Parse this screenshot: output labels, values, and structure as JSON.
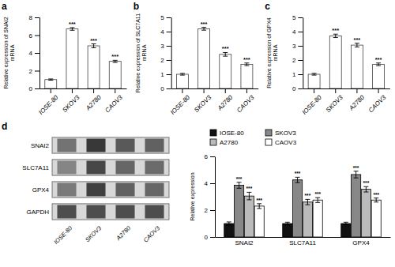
{
  "chart_data": [
    {
      "type": "bar",
      "title": "a",
      "categories": [
        "IOSE-80",
        "SKOV3",
        "A2780",
        "CAOV3"
      ],
      "values": [
        1.0,
        6.7,
        4.8,
        3.05
      ],
      "errors": [
        0.07,
        0.15,
        0.22,
        0.12
      ],
      "annotations": [
        null,
        "***",
        "***",
        "***"
      ],
      "ylabel": "Relative expression of SNAI2\nmRNA",
      "color": "#ffffff",
      "ylim": [
        0,
        8
      ],
      "yticks": [
        0,
        2,
        4,
        6,
        8
      ]
    },
    {
      "type": "bar",
      "title": "b",
      "categories": [
        "IOSE-80",
        "SKOV3",
        "A2780",
        "CAOV3"
      ],
      "values": [
        1.0,
        4.2,
        2.4,
        1.7
      ],
      "errors": [
        0.06,
        0.1,
        0.13,
        0.09
      ],
      "annotations": [
        null,
        "***",
        "***",
        "***"
      ],
      "ylabel": "Relative expression of SLC7A11\nmRNA",
      "color": "#ffffff",
      "ylim": [
        0,
        5
      ],
      "yticks": [
        0,
        1,
        2,
        3,
        4,
        5
      ]
    },
    {
      "type": "bar",
      "title": "c",
      "categories": [
        "IOSE-80",
        "SKOV3",
        "A2780",
        "CAOV3"
      ],
      "values": [
        1.0,
        3.7,
        3.05,
        1.7
      ],
      "errors": [
        0.06,
        0.12,
        0.13,
        0.09
      ],
      "annotations": [
        null,
        "***",
        "***",
        "***"
      ],
      "ylabel": "Relative expression of GPX4\nmRNA",
      "color": "#ffffff",
      "ylim": [
        0,
        5
      ],
      "yticks": [
        0,
        1,
        2,
        3,
        4,
        5
      ]
    },
    {
      "type": "heatmap",
      "title": "d",
      "categories": [
        "IOSE-80",
        "SKOV3",
        "A2780",
        "CAOV3"
      ],
      "rows": [
        "SNAI2",
        "SLC7A11",
        "GPX4",
        "GAPDH"
      ],
      "values": [
        [
          0.45,
          0.22,
          0.35,
          0.38
        ],
        [
          0.52,
          0.28,
          0.4,
          0.42
        ],
        [
          0.48,
          0.25,
          0.38,
          0.4
        ],
        [
          0.3,
          0.3,
          0.3,
          0.3
        ]
      ]
    },
    {
      "type": "bar",
      "categories": [
        "SNAI2",
        "SLC7A11",
        "GPX4"
      ],
      "series": [
        {
          "name": "IOSE-80",
          "color": "#111111",
          "values": [
            1.0,
            1.0,
            1.0
          ],
          "errors": [
            0.12,
            0.1,
            0.1
          ],
          "annotations": [
            null,
            null,
            null
          ]
        },
        {
          "name": "SKOV3",
          "color": "#888888",
          "values": [
            3.85,
            4.25,
            4.65
          ],
          "errors": [
            0.22,
            0.2,
            0.25
          ],
          "annotations": [
            "***",
            "***",
            "***"
          ]
        },
        {
          "name": "A2780",
          "color": "#bbbbbb",
          "values": [
            3.05,
            2.6,
            3.55
          ],
          "errors": [
            0.28,
            0.2,
            0.2
          ],
          "annotations": [
            "***",
            "***",
            "***"
          ]
        },
        {
          "name": "CAOV3",
          "color": "#ffffff",
          "values": [
            2.3,
            2.75,
            2.75
          ],
          "errors": [
            0.18,
            0.18,
            0.15
          ],
          "annotations": [
            "***",
            "***",
            "***"
          ]
        }
      ],
      "ylabel": "Relative expression",
      "ylim": [
        0,
        6
      ],
      "yticks": [
        0,
        2,
        4,
        6
      ],
      "legend": "upper left"
    }
  ]
}
